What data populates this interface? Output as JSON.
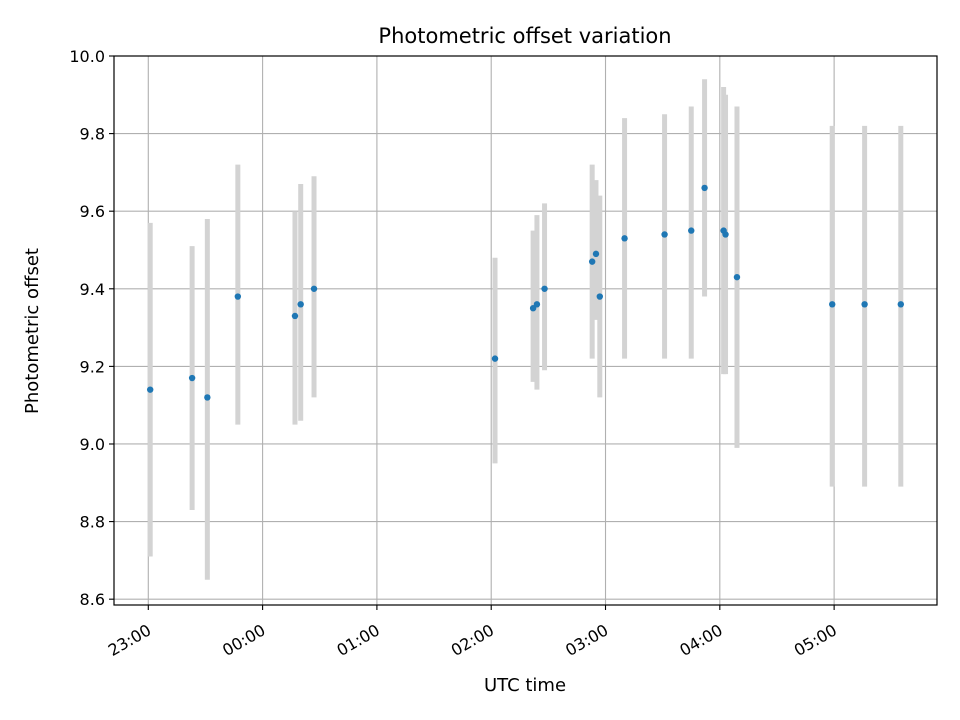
{
  "chart_data": {
    "type": "scatter",
    "title": "Photometric offset variation",
    "xlabel": "UTC time",
    "ylabel": "Photometric offset",
    "grid": true,
    "xlim": [
      "22:42",
      "29:54"
    ],
    "ylim": [
      8.585,
      10.0
    ],
    "x_ticks": [
      "23:00",
      "00:00",
      "01:00",
      "02:00",
      "03:00",
      "04:00",
      "05:00"
    ],
    "y_ticks": [
      "8.6",
      "8.8",
      "9.0",
      "9.2",
      "9.4",
      "9.6",
      "9.8",
      "10.0"
    ],
    "colors": {
      "points": "#1f77b4",
      "errorbars": "#d3d3d3",
      "grid": "#b0b0b0"
    },
    "series": [
      {
        "points": [
          {
            "time": "23:01",
            "y": 9.14,
            "low": 8.71,
            "high": 9.57
          },
          {
            "time": "23:23",
            "y": 9.17,
            "low": 8.83,
            "high": 9.51
          },
          {
            "time": "23:31",
            "y": 9.12,
            "low": 8.65,
            "high": 9.58
          },
          {
            "time": "23:47",
            "y": 9.38,
            "low": 9.05,
            "high": 9.72
          },
          {
            "time": "00:17",
            "y": 9.33,
            "low": 9.05,
            "high": 9.6
          },
          {
            "time": "00:20",
            "y": 9.36,
            "low": 9.06,
            "high": 9.67
          },
          {
            "time": "00:27",
            "y": 9.4,
            "low": 9.12,
            "high": 9.69
          },
          {
            "time": "02:02",
            "y": 9.22,
            "low": 8.95,
            "high": 9.48
          },
          {
            "time": "02:22",
            "y": 9.35,
            "low": 9.16,
            "high": 9.55
          },
          {
            "time": "02:24",
            "y": 9.36,
            "low": 9.14,
            "high": 9.59
          },
          {
            "time": "02:28",
            "y": 9.4,
            "low": 9.19,
            "high": 9.62
          },
          {
            "time": "02:53",
            "y": 9.47,
            "low": 9.22,
            "high": 9.72
          },
          {
            "time": "02:55",
            "y": 9.49,
            "low": 9.32,
            "high": 9.68
          },
          {
            "time": "02:57",
            "y": 9.38,
            "low": 9.12,
            "high": 9.64
          },
          {
            "time": "03:10",
            "y": 9.53,
            "low": 9.22,
            "high": 9.84
          },
          {
            "time": "03:31",
            "y": 9.54,
            "low": 9.22,
            "high": 9.85
          },
          {
            "time": "03:45",
            "y": 9.55,
            "low": 9.22,
            "high": 9.87
          },
          {
            "time": "03:52",
            "y": 9.66,
            "low": 9.38,
            "high": 9.94
          },
          {
            "time": "04:02",
            "y": 9.55,
            "low": 9.18,
            "high": 9.92
          },
          {
            "time": "04:03",
            "y": 9.54,
            "low": 9.18,
            "high": 9.9
          },
          {
            "time": "04:09",
            "y": 9.43,
            "low": 8.99,
            "high": 9.87
          },
          {
            "time": "04:59",
            "y": 9.36,
            "low": 8.89,
            "high": 9.82
          },
          {
            "time": "05:16",
            "y": 9.36,
            "low": 8.89,
            "high": 9.82
          },
          {
            "time": "05:35",
            "y": 9.36,
            "low": 8.89,
            "high": 9.82
          }
        ]
      }
    ]
  }
}
